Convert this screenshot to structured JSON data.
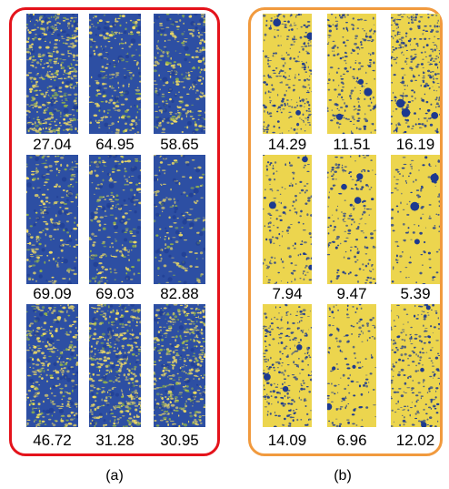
{
  "panels": [
    {
      "caption": "(a)",
      "border_color": "#e4131b",
      "tint": "blue",
      "values": [
        "27.04",
        "64.95",
        "58.65",
        "69.09",
        "69.03",
        "82.88",
        "46.72",
        "31.28",
        "30.95"
      ]
    },
    {
      "caption": "(b)",
      "border_color": "#f19a3e",
      "tint": "yellow",
      "values": [
        "14.29",
        "11.51",
        "16.19",
        "7.94",
        "9.47",
        "5.39",
        "14.09",
        "6.96",
        "12.02"
      ]
    }
  ],
  "colors": {
    "blue": "#2d4fa3",
    "yellow": "#ecd54e",
    "deep_blue": "#1d3a8f",
    "pale_yellow": "#f0dc64"
  }
}
